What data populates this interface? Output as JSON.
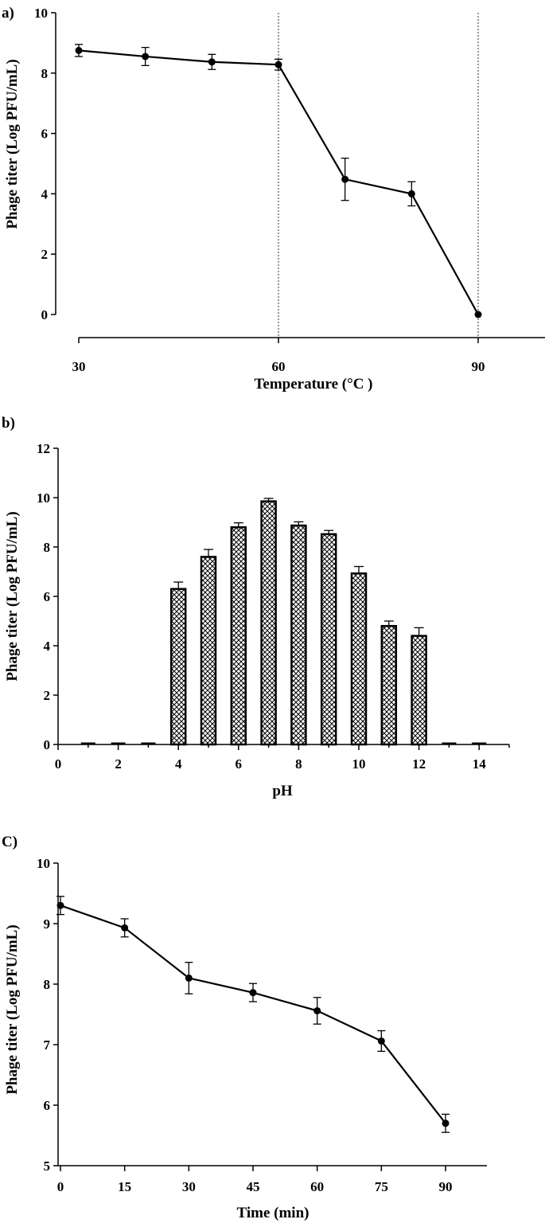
{
  "figure": {
    "colors": {
      "ink": "#000000",
      "background": "#ffffff",
      "bar_fill": "#ffffff",
      "bar_hatch": "crosshatch"
    }
  },
  "chart_data": [
    {
      "panel_label": "a)",
      "type": "line",
      "xlabel": "Temperature (°C )",
      "ylabel": "Phage titer (Log PFU/mL)",
      "xlim": [
        30,
        99
      ],
      "ylim": [
        0,
        10
      ],
      "x_ticks": [
        30,
        60,
        90
      ],
      "y_ticks": [
        0,
        2,
        4,
        6,
        8,
        10
      ],
      "reference_lines_x": [
        60,
        90
      ],
      "series": [
        {
          "x": [
            30,
            40,
            50,
            60,
            70,
            80,
            90
          ],
          "y": [
            8.75,
            8.55,
            8.37,
            8.28,
            4.48,
            4.0,
            0.0
          ],
          "err": [
            0.2,
            0.3,
            0.25,
            0.18,
            0.7,
            0.4,
            0.0
          ]
        }
      ]
    },
    {
      "panel_label": "b)",
      "type": "bar",
      "xlabel": "pH",
      "ylabel": "Phage titer (Log PFU/mL)",
      "xlim": [
        0,
        15
      ],
      "ylim": [
        0,
        12
      ],
      "x_ticks": [
        0,
        2,
        4,
        6,
        8,
        10,
        12,
        14
      ],
      "y_ticks": [
        0,
        2,
        4,
        6,
        8,
        10,
        12
      ],
      "x": [
        1,
        2,
        3,
        4,
        5,
        6,
        7,
        8,
        9,
        10,
        11,
        12,
        13,
        14
      ],
      "values": [
        0,
        0,
        0,
        6.3,
        7.6,
        8.8,
        9.85,
        8.87,
        8.52,
        6.93,
        4.8,
        4.4,
        0,
        0
      ],
      "err": [
        0,
        0,
        0,
        0.28,
        0.3,
        0.18,
        0.12,
        0.15,
        0.15,
        0.28,
        0.2,
        0.33,
        0,
        0
      ]
    },
    {
      "panel_label": "C)",
      "type": "line",
      "xlabel": "Time (min)",
      "ylabel": "Phage titer (Log PFU/mL)",
      "xlim": [
        0,
        96
      ],
      "ylim": [
        5,
        10
      ],
      "x_ticks": [
        0,
        15,
        30,
        45,
        60,
        75,
        90
      ],
      "y_ticks": [
        5,
        6,
        7,
        8,
        9,
        10
      ],
      "series": [
        {
          "x": [
            0,
            15,
            30,
            45,
            60,
            75,
            90
          ],
          "y": [
            9.3,
            8.93,
            8.1,
            7.86,
            7.56,
            7.06,
            5.7
          ],
          "err": [
            0.15,
            0.15,
            0.26,
            0.15,
            0.22,
            0.17,
            0.15
          ]
        }
      ]
    }
  ]
}
